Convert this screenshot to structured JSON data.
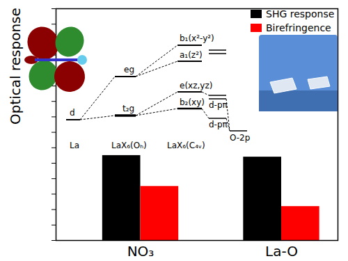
{
  "chart_data": {
    "type": "bar",
    "ylabel": "Optical response",
    "categories": [
      "NO₃",
      "La-O"
    ],
    "series": [
      {
        "name": "SHG response",
        "color": "#000000",
        "values": [
          5.5,
          5.4
        ]
      },
      {
        "name": "Birefringence",
        "color": "#ff0000",
        "values": [
          3.5,
          2.2
        ]
      }
    ],
    "ylim": [
      0,
      15
    ],
    "yticks": [
      0,
      1,
      2,
      3,
      4,
      5,
      6,
      7,
      8,
      9,
      10,
      11,
      12,
      13,
      14,
      15
    ],
    "tick_labels": "x",
    "grid": false,
    "legend": "top-right",
    "annotations": [
      "d",
      "eg",
      "t₂g",
      "b₁(x²-y²)",
      "a₁(z²)",
      "e(xz,yz)",
      "b₂(xy)",
      "d-pπ",
      "d-pπ",
      "La",
      "LaX₆(Oₕ)",
      "LaX₆(C₄ᵥ)",
      "O-2p"
    ]
  }
}
